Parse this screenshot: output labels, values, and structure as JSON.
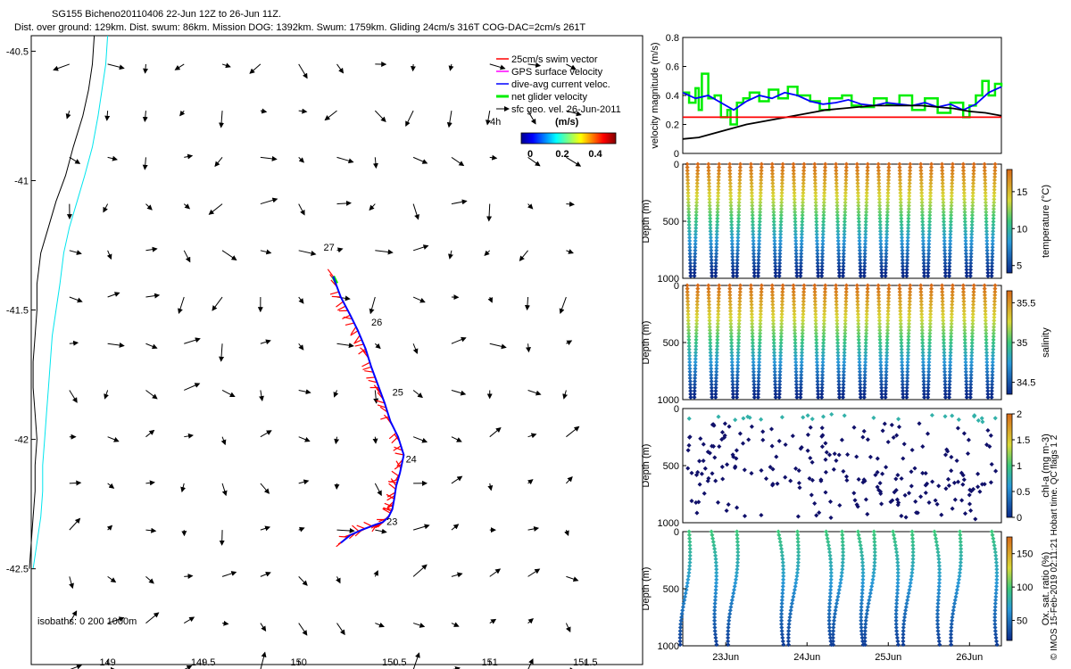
{
  "title_line1": "SG155 Bicheno20110406 22-Jun 12Z to 26-Jun 11Z.",
  "title_line2": "Dist. over ground: 129km. Dist. swum: 86km. Mission DOG: 1392km. Swum: 1759km. Gliding 24cm/s 316T COG-DAC=2cm/s 261T",
  "side_label": "© IMOS 15-Feb-2019 02:11:21 Hobart time. QC flags 1  2",
  "colors": {
    "swim": "#ff0000",
    "gps": "#ff00ff",
    "dac": "#0000ff",
    "net": "#00ee00",
    "sfc": "#000000",
    "isobath_0": "#000000",
    "isobath_200": "#00e5ee"
  },
  "chart_data": [
    {
      "id": "map",
      "type": "scatter",
      "xlim": [
        148.6,
        151.8
      ],
      "ylim": [
        -42.87,
        -40.44
      ],
      "x_ticks": [
        "149",
        "149.5",
        "150",
        "150.5",
        "151",
        "151.5"
      ],
      "x_tick_values": [
        149,
        149.5,
        150,
        150.5,
        151,
        151.5
      ],
      "y_ticks": [
        "-40.5",
        "-41",
        "-41.5",
        "-42",
        "-42.5"
      ],
      "y_tick_values": [
        -40.5,
        -41,
        -41.5,
        -42,
        -42.5
      ],
      "legend": [
        {
          "label": "25cm/s swim vector",
          "color": "#ff0000"
        },
        {
          "label": "GPS surface velocity",
          "color": "#ff00ff"
        },
        {
          "label": "dive-avg current veloc.",
          "color": "#0000ff"
        },
        {
          "label": "net glider velocity",
          "color": "#00ee00"
        },
        {
          "label": "sfc geo. vel. 26-Jun-2011",
          "color": "#000000"
        }
      ],
      "legend_position": "top-right",
      "colorbar": {
        "label": "(m/s)",
        "ticks": [
          "0",
          "0.2",
          "0.4"
        ],
        "range": [
          0,
          0.5
        ]
      },
      "isobath_label": "isobaths: 0   200   1000m",
      "scale_label": "4h",
      "track": {
        "lon": [
          150.18,
          150.22,
          150.27,
          150.31,
          150.35,
          150.38,
          150.42,
          150.45,
          150.48,
          150.52,
          150.55,
          150.53,
          150.51,
          150.5,
          150.49,
          150.47,
          150.44,
          150.4,
          150.33,
          150.27,
          150.22
        ],
        "lat": [
          -41.37,
          -41.45,
          -41.52,
          -41.58,
          -41.65,
          -41.72,
          -41.8,
          -41.86,
          -41.93,
          -41.99,
          -42.06,
          -42.13,
          -42.18,
          -42.23,
          -42.27,
          -42.3,
          -42.32,
          -42.33,
          -42.35,
          -42.37,
          -42.4
        ]
      },
      "day_labels": [
        {
          "text": "27",
          "lon": 150.13,
          "lat": -41.27
        },
        {
          "text": "26",
          "lon": 150.38,
          "lat": -41.56
        },
        {
          "text": "25",
          "lon": 150.49,
          "lat": -41.83
        },
        {
          "text": "24",
          "lon": 150.56,
          "lat": -42.09
        },
        {
          "text": "23",
          "lon": 150.46,
          "lat": -42.33
        }
      ],
      "coast_0m": {
        "lon": [
          148.93,
          148.92,
          148.9,
          148.87,
          148.82,
          148.78,
          148.73,
          148.69,
          148.65,
          148.63,
          148.63,
          148.62,
          148.61,
          148.61,
          148.62,
          148.63,
          148.62,
          148.62,
          148.61,
          148.6,
          148.59
        ],
        "lat": [
          -40.44,
          -40.55,
          -40.65,
          -40.75,
          -40.87,
          -40.98,
          -41.08,
          -41.18,
          -41.28,
          -41.4,
          -41.5,
          -41.6,
          -41.7,
          -41.8,
          -41.9,
          -42.0,
          -42.1,
          -42.2,
          -42.3,
          -42.4,
          -42.5
        ]
      },
      "coast_200m": {
        "lon": [
          149.0,
          148.99,
          148.97,
          148.95,
          148.92,
          148.88,
          148.84,
          148.8,
          148.77,
          148.75,
          148.73,
          148.71,
          148.7,
          148.69,
          148.68,
          148.67,
          148.66,
          148.66,
          148.65,
          148.63,
          148.61
        ],
        "lat": [
          -40.44,
          -40.55,
          -40.65,
          -40.75,
          -40.87,
          -40.98,
          -41.08,
          -41.18,
          -41.28,
          -41.4,
          -41.5,
          -41.6,
          -41.7,
          -41.8,
          -41.9,
          -42.0,
          -42.1,
          -42.2,
          -42.3,
          -42.4,
          -42.5
        ]
      }
    },
    {
      "id": "velocity",
      "type": "line",
      "ylabel": "velocity magnitude (m/s)",
      "ylim": [
        0,
        0.8
      ],
      "y_ticks": [
        "0",
        "0.2",
        "0.4",
        "0.6",
        "0.8"
      ],
      "xlim": [
        0,
        1
      ],
      "series": [
        {
          "color": "#00ee00",
          "x": [
            0.0,
            0.02,
            0.04,
            0.05,
            0.06,
            0.08,
            0.1,
            0.12,
            0.14,
            0.15,
            0.17,
            0.19,
            0.21,
            0.24,
            0.27,
            0.3,
            0.33,
            0.36,
            0.4,
            0.43,
            0.46,
            0.5,
            0.53,
            0.56,
            0.6,
            0.64,
            0.68,
            0.72,
            0.76,
            0.8,
            0.84,
            0.88,
            0.9,
            0.92,
            0.94,
            0.96,
            0.98,
            1.0
          ],
          "y": [
            0.42,
            0.35,
            0.45,
            0.3,
            0.55,
            0.38,
            0.4,
            0.25,
            0.3,
            0.2,
            0.35,
            0.38,
            0.42,
            0.36,
            0.44,
            0.38,
            0.46,
            0.4,
            0.36,
            0.3,
            0.38,
            0.4,
            0.33,
            0.32,
            0.38,
            0.34,
            0.4,
            0.3,
            0.38,
            0.28,
            0.35,
            0.25,
            0.33,
            0.4,
            0.5,
            0.4,
            0.48,
            0.46
          ]
        },
        {
          "color": "#0000ff",
          "x": [
            0.0,
            0.04,
            0.08,
            0.12,
            0.16,
            0.2,
            0.24,
            0.28,
            0.32,
            0.36,
            0.4,
            0.44,
            0.48,
            0.52,
            0.56,
            0.6,
            0.64,
            0.68,
            0.72,
            0.76,
            0.8,
            0.84,
            0.88,
            0.92,
            0.96,
            1.0
          ],
          "y": [
            0.42,
            0.38,
            0.4,
            0.35,
            0.3,
            0.36,
            0.4,
            0.38,
            0.42,
            0.4,
            0.36,
            0.34,
            0.35,
            0.37,
            0.34,
            0.33,
            0.35,
            0.34,
            0.33,
            0.35,
            0.32,
            0.34,
            0.3,
            0.34,
            0.42,
            0.46
          ]
        },
        {
          "color": "#000000",
          "x": [
            0.0,
            0.05,
            0.1,
            0.15,
            0.2,
            0.25,
            0.3,
            0.35,
            0.4,
            0.45,
            0.5,
            0.55,
            0.6,
            0.65,
            0.7,
            0.75,
            0.8,
            0.85,
            0.9,
            0.95,
            1.0
          ],
          "y": [
            0.1,
            0.11,
            0.14,
            0.17,
            0.2,
            0.22,
            0.24,
            0.26,
            0.28,
            0.3,
            0.31,
            0.32,
            0.33,
            0.33,
            0.33,
            0.33,
            0.32,
            0.31,
            0.29,
            0.28,
            0.26
          ]
        },
        {
          "color": "#ff0000",
          "x": [
            0.0,
            1.0
          ],
          "y": [
            0.25,
            0.25
          ]
        }
      ]
    },
    {
      "id": "temperature",
      "type": "scatter",
      "ylabel": "Depth (m)",
      "yrev": true,
      "ylim": [
        0,
        1000
      ],
      "y_ticks": [
        "0",
        "500",
        "1000"
      ],
      "colorbar": {
        "label": "temperature (°C)",
        "ticks": [
          "5",
          "10",
          "15"
        ],
        "range": [
          4,
          18
        ]
      },
      "profiles": 30
    },
    {
      "id": "salinity",
      "type": "scatter",
      "ylabel": "Depth (m)",
      "ylim": [
        0,
        1000
      ],
      "y_ticks": [
        "0",
        "500",
        "1000"
      ],
      "colorbar": {
        "label": "salinity",
        "ticks": [
          "34.5",
          "35",
          "35.5"
        ],
        "range": [
          34.35,
          35.65
        ]
      },
      "profiles": 30
    },
    {
      "id": "chla",
      "type": "scatter",
      "ylabel": "Depth (m)",
      "ylim": [
        0,
        1000
      ],
      "y_ticks": [
        "0",
        "500",
        "1000"
      ],
      "colorbar": {
        "label": "chl-a (mg m-3)",
        "ticks": [
          "0",
          "0.5",
          "1",
          "1.5",
          "2"
        ],
        "range": [
          0,
          2
        ]
      }
    },
    {
      "id": "oxygen",
      "type": "scatter",
      "ylabel": "Depth (m)",
      "ylim": [
        0,
        1000
      ],
      "y_ticks": [
        "0",
        "500",
        "1000"
      ],
      "x_ticks": [
        "23Jun",
        "24Jun",
        "25Jun",
        "26Jun"
      ],
      "colorbar": {
        "label": "Ox. sat. ratio (%)",
        "ticks": [
          "50",
          "100",
          "150"
        ],
        "range": [
          20,
          175
        ]
      }
    }
  ]
}
